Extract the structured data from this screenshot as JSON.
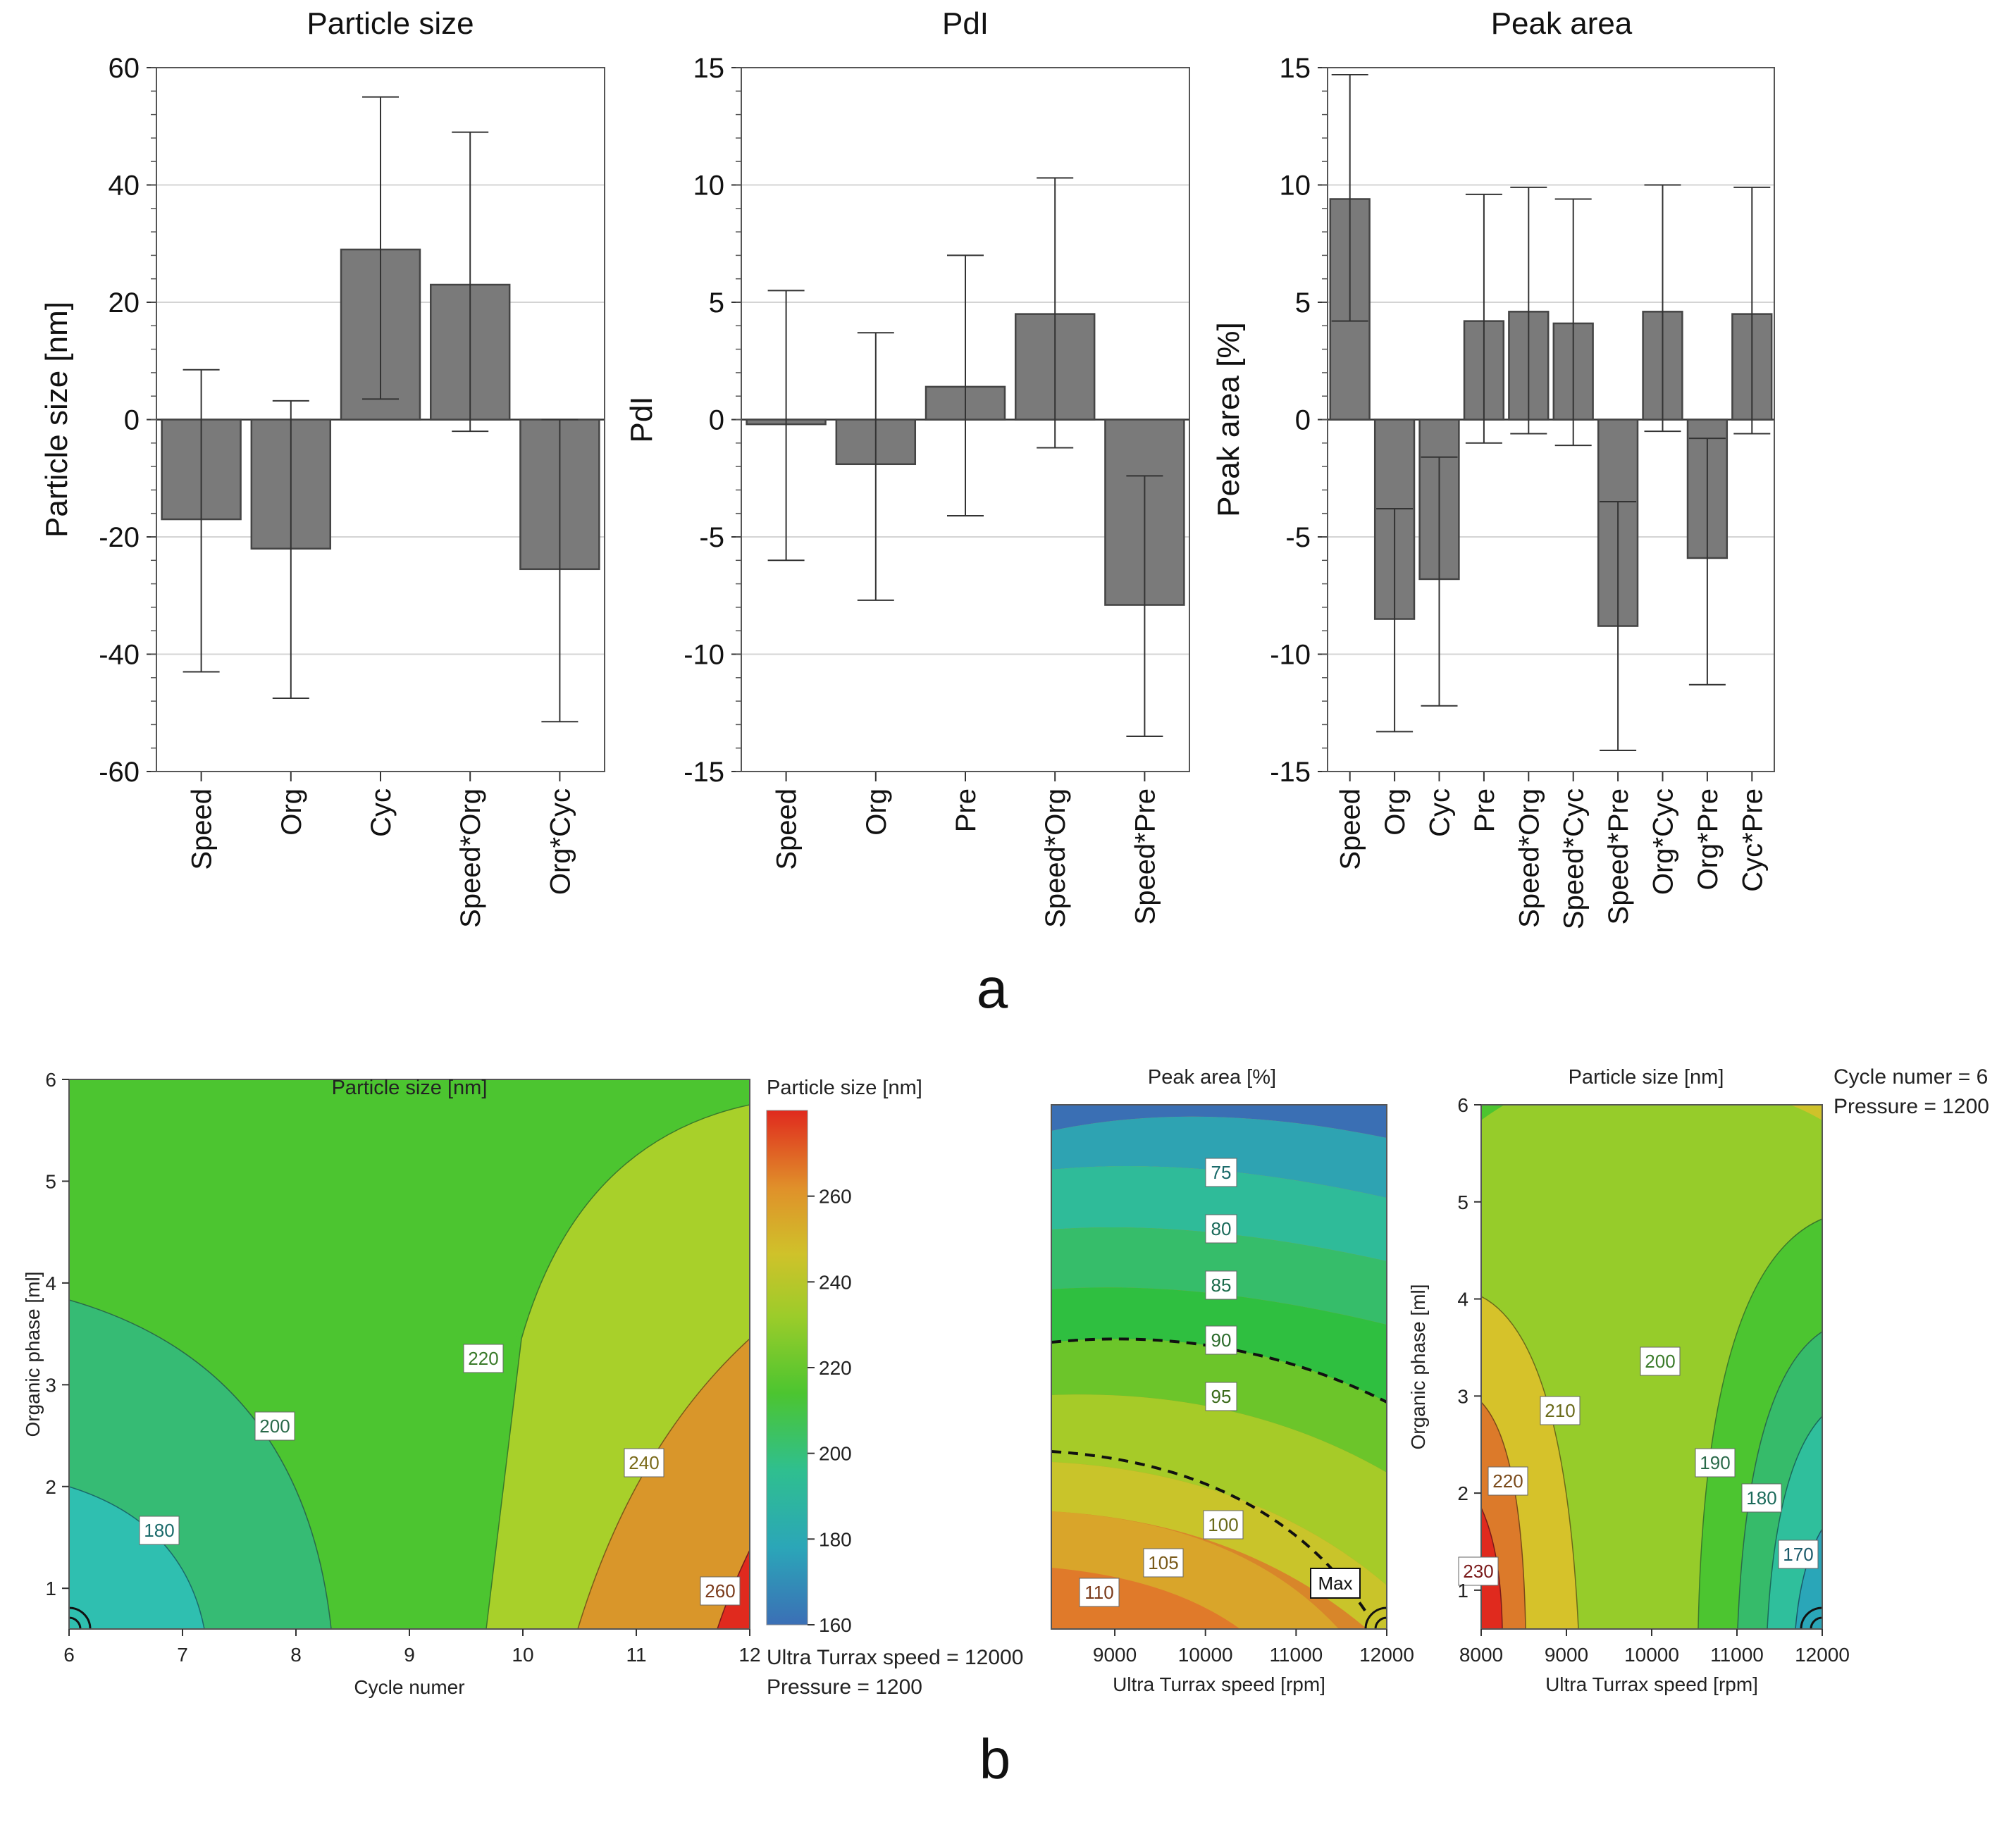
{
  "chart_data": [
    {
      "type": "bar",
      "title": "Particle size",
      "ylabel": "Particle size [nm]",
      "ylim": [
        -60,
        60
      ],
      "yticks": [
        "60",
        "40",
        "20",
        "0",
        "-20",
        "-40",
        "-60"
      ],
      "categories": [
        "Speed",
        "Org",
        "Cyc",
        "Speed*Org",
        "Org*Cyc"
      ],
      "values": [
        -17,
        -22,
        29,
        23,
        -25.5
      ],
      "error_low": [
        -43,
        -47.5,
        3.5,
        -2,
        -51.5
      ],
      "error_high": [
        8.5,
        3.2,
        55,
        49,
        0
      ],
      "grid": true,
      "colors": {
        "bar": "#7a7a7a"
      }
    },
    {
      "type": "bar",
      "title": "PdI",
      "ylabel": "PdI",
      "ylim": [
        -15,
        15
      ],
      "yticks": [
        "15",
        "10",
        "5",
        "0",
        "-5",
        "-10",
        "-15"
      ],
      "categories": [
        "Speed",
        "Org",
        "Pre",
        "Speed*Org",
        "Speed*Pre"
      ],
      "values": [
        -0.2,
        -1.9,
        1.4,
        4.5,
        -7.9
      ],
      "error_low": [
        -6,
        -7.7,
        -4.1,
        -1.2,
        -13.5
      ],
      "error_high": [
        5.5,
        3.7,
        7,
        10.3,
        -2.4
      ],
      "grid": true
    },
    {
      "type": "bar",
      "title": "Peak area",
      "ylabel": "Peak area [%]",
      "ylim": [
        -15,
        15
      ],
      "yticks": [
        "15",
        "10",
        "5",
        "0",
        "-5",
        "-10",
        "-15"
      ],
      "categories": [
        "Speed",
        "Org",
        "Cyc",
        "Pre",
        "Speed*Org",
        "Speed*Cyc",
        "Speed*Pre",
        "Org*Cyc",
        "Org*Pre",
        "Cyc*Pre"
      ],
      "values": [
        9.4,
        -8.5,
        -6.8,
        4.2,
        4.6,
        4.1,
        -8.8,
        4.6,
        -5.9,
        4.5
      ],
      "error_low": [
        4.2,
        -13.3,
        -12.2,
        -1,
        -0.6,
        -1.1,
        -14.1,
        -0.5,
        -11.3,
        -0.6
      ],
      "error_high": [
        14.7,
        -3.8,
        -1.6,
        9.6,
        9.9,
        9.4,
        -3.5,
        10,
        -0.8,
        9.9
      ],
      "grid": true
    },
    {
      "type": "heatmap",
      "subtype": "contour",
      "title": "Particle size [nm]",
      "xlabel": "Cycle numer",
      "ylabel": "Organic phase [ml]",
      "xlim": [
        6,
        12
      ],
      "ylim": [
        0.6,
        6
      ],
      "xticks": [
        "6",
        "7",
        "8",
        "9",
        "10",
        "11",
        "12"
      ],
      "yticks": [
        "6",
        "5",
        "4",
        "3",
        "2",
        "1"
      ],
      "contour_labels": [
        "180",
        "200",
        "220",
        "240",
        "260"
      ],
      "colorbar": {
        "title": "Particle size [nm]",
        "ticks": [
          "260",
          "240",
          "220",
          "200",
          "180",
          "160"
        ],
        "range": [
          160,
          280
        ]
      },
      "fixed": [
        "Ultra Turrax speed = 12000",
        "Pressure = 1200"
      ]
    },
    {
      "type": "heatmap",
      "subtype": "contour",
      "title": "Peak area [%]",
      "xlabel": "Ultra Turrax speed [rpm]",
      "xlim": [
        8300,
        12000
      ],
      "xticks": [
        "9000",
        "10000",
        "11000",
        "12000"
      ],
      "contour_labels": [
        "75",
        "80",
        "85",
        "90",
        "95",
        "100",
        "105",
        "110"
      ],
      "annotation": "Max"
    },
    {
      "type": "heatmap",
      "subtype": "contour",
      "title": "Particle size [nm]",
      "xlabel": "Ultra Turrax speed [rpm]",
      "ylabel": "Organic phase [ml]",
      "xlim": [
        8000,
        12000
      ],
      "ylim": [
        0.6,
        6
      ],
      "xticks": [
        "8000",
        "9000",
        "10000",
        "11000",
        "12000"
      ],
      "yticks": [
        "6",
        "5",
        "4",
        "3",
        "2",
        "1"
      ],
      "contour_labels": [
        "170",
        "180",
        "190",
        "200",
        "210",
        "220",
        "230"
      ],
      "fixed": [
        "Cycle numer = 6",
        "Pressure = 1200"
      ]
    }
  ],
  "panel_labels": {
    "a": "a",
    "b": "b"
  }
}
